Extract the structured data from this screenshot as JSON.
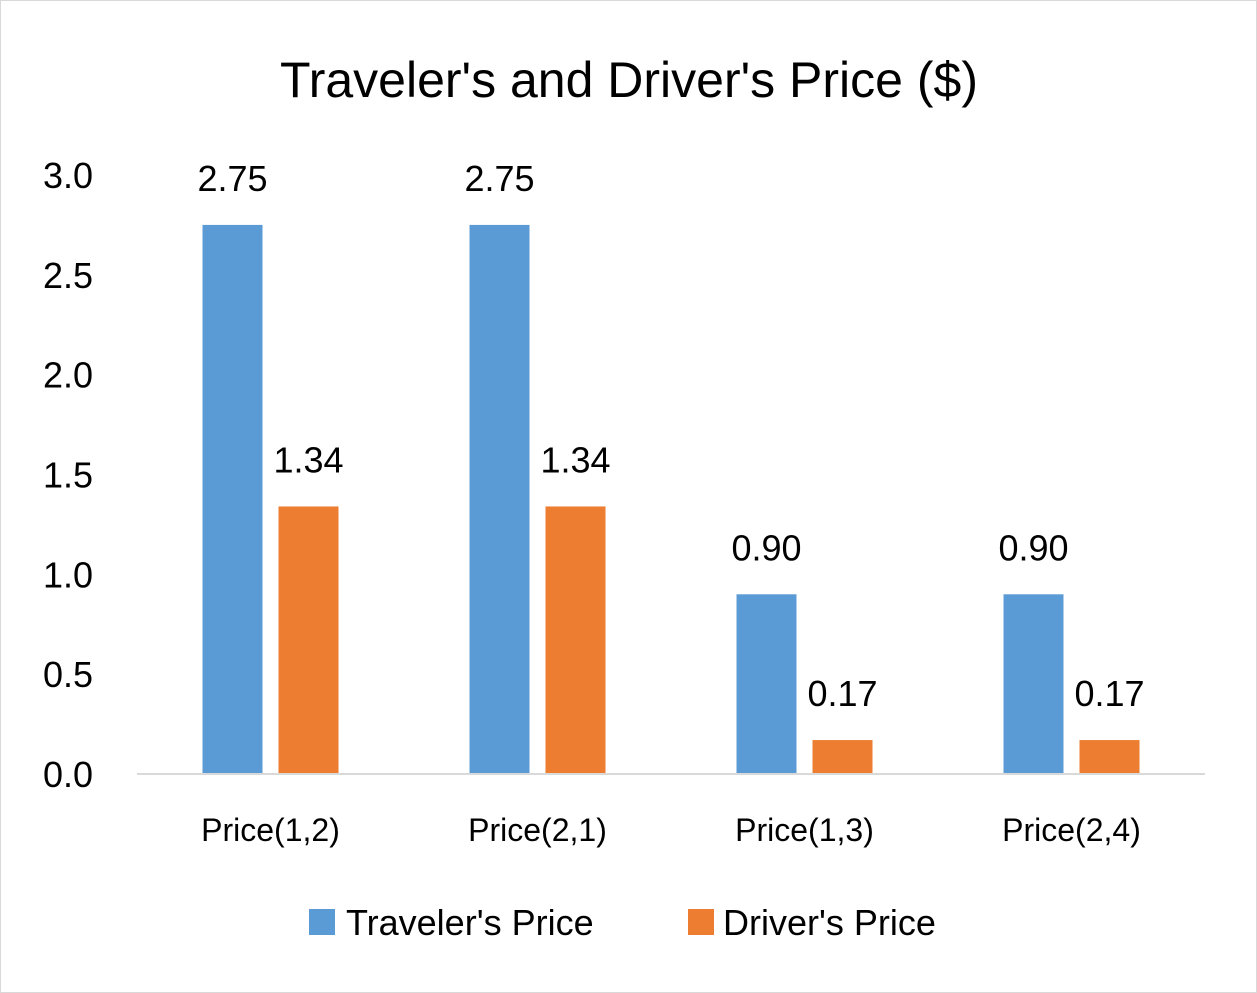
{
  "chart_data": {
    "type": "bar",
    "title": "Traveler's and Driver's Price ($)",
    "xlabel": "",
    "ylabel": "",
    "categories": [
      "Price(1,2)",
      "Price(2,1)",
      "Price(1,3)",
      "Price(2,4)"
    ],
    "series": [
      {
        "name": "Traveler's Price",
        "color": "#5b9bd5",
        "values": [
          2.75,
          2.75,
          0.9,
          0.9
        ],
        "labels": [
          "2.75",
          "2.75",
          "0.90",
          "0.90"
        ]
      },
      {
        "name": "Driver's Price",
        "color": "#ed7d31",
        "values": [
          1.34,
          1.34,
          0.17,
          0.17
        ],
        "labels": [
          "1.34",
          "1.34",
          "0.17",
          "0.17"
        ]
      }
    ],
    "ylim": [
      0,
      3.0
    ],
    "yticks": [
      "0.0",
      "0.5",
      "1.0",
      "1.5",
      "2.0",
      "2.5",
      "3.0"
    ],
    "grid": false,
    "legend_position": "bottom"
  }
}
